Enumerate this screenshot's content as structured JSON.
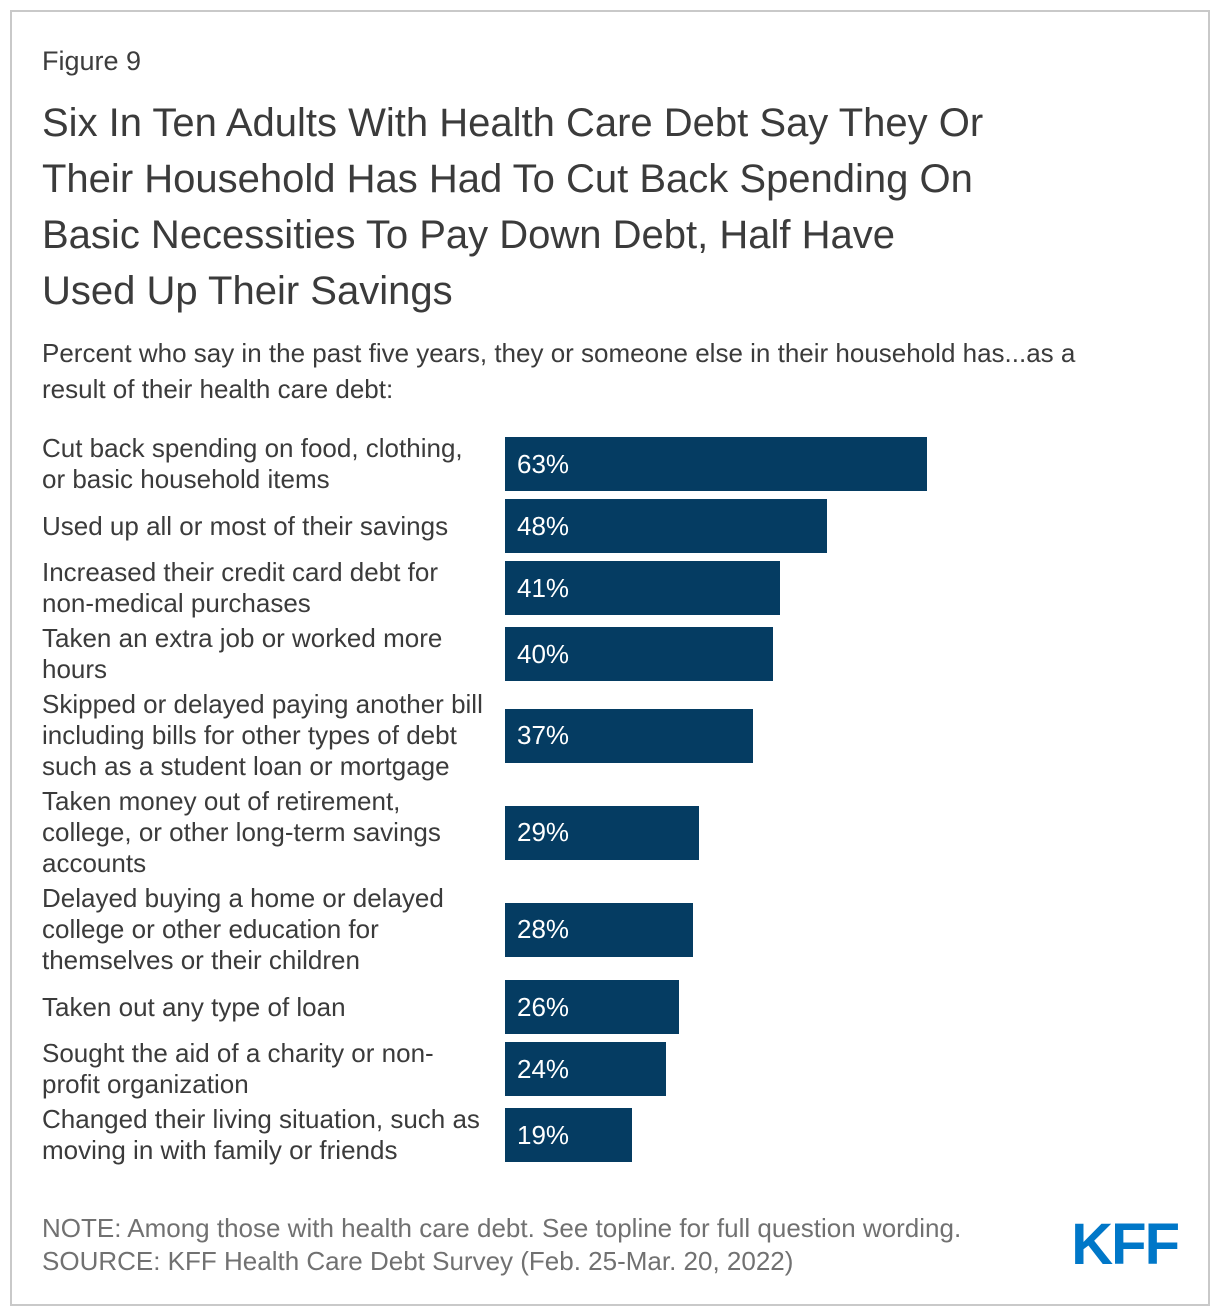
{
  "figure": {
    "label": "Figure 9"
  },
  "title": "Six In Ten Adults With Health Care Debt Say They Or\nTheir Household Has Had To Cut Back Spending On\nBasic Necessities To Pay Down Debt, Half Have\nUsed Up Their Savings",
  "subtitle": "Percent who say in the past five years, they or someone else in their household has...as a\nresult of their health care debt:",
  "chart_data": {
    "type": "bar",
    "orientation": "horizontal",
    "value_unit": "percent",
    "xlim": [
      0,
      100
    ],
    "grid": false,
    "bar_color": "#053C62",
    "categories": [
      "Cut back spending on food, clothing,\nor basic household items",
      "Used up all or most of their savings",
      "Increased their credit card debt for\nnon-medical purchases",
      "Taken an extra job or worked more\nhours",
      "Skipped or delayed paying another bill\nincluding bills for other types of debt\nsuch as a student loan or mortgage",
      "Taken money out of retirement,\ncollege, or other long-term savings\naccounts",
      "Delayed buying a home or delayed\ncollege or other education for\nthemselves or their children",
      "Taken out any type of loan",
      "Sought the aid of a charity or non-\nprofit organization",
      "Changed their living situation, such as\nmoving in with family or friends"
    ],
    "values": [
      63,
      48,
      41,
      40,
      37,
      29,
      28,
      26,
      24,
      19
    ],
    "value_labels": [
      "63%",
      "48%",
      "41%",
      "40%",
      "37%",
      "29%",
      "28%",
      "26%",
      "24%",
      "19%"
    ]
  },
  "footer": {
    "note": "NOTE: Among those with health care debt. See topline for full question wording.",
    "source": "SOURCE: KFF Health Care Debt Survey (Feb. 25-Mar. 20, 2022)",
    "logo_text": "KFF"
  },
  "colors": {
    "bar": "#053C62",
    "bar_value_text": "#FFFFFF",
    "logo_blue": "#0077C8",
    "card_border": "#C9C9C9",
    "title_text": "#3B3B3B",
    "body_text": "#3B3B3B",
    "muted_text": "#717171"
  }
}
